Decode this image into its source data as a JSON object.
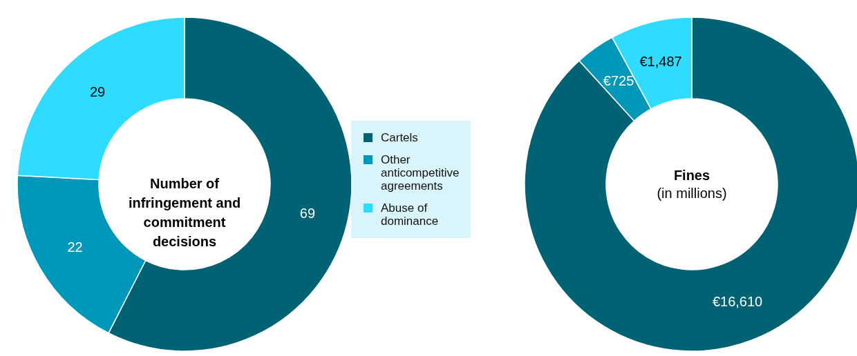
{
  "chart_data": [
    {
      "type": "donut",
      "title": "Number of infringement and commitment decisions",
      "categories": [
        "Cartels",
        "Other anticompetitive agreements",
        "Abuse of dominance"
      ],
      "values": [
        69,
        22,
        29
      ],
      "colors": [
        "#006272",
        "#0097b9",
        "#2fdbff"
      ],
      "data_labels": true,
      "legend": "right"
    },
    {
      "type": "donut",
      "title": "Fines",
      "subtitle": "(in millions)",
      "values": [
        16610,
        725,
        1487
      ],
      "colors": [
        "#006272",
        "#0097b9",
        "#2fdbff"
      ],
      "value_labels": [
        "€16,610",
        "€725",
        "€1,487"
      ]
    }
  ]
}
